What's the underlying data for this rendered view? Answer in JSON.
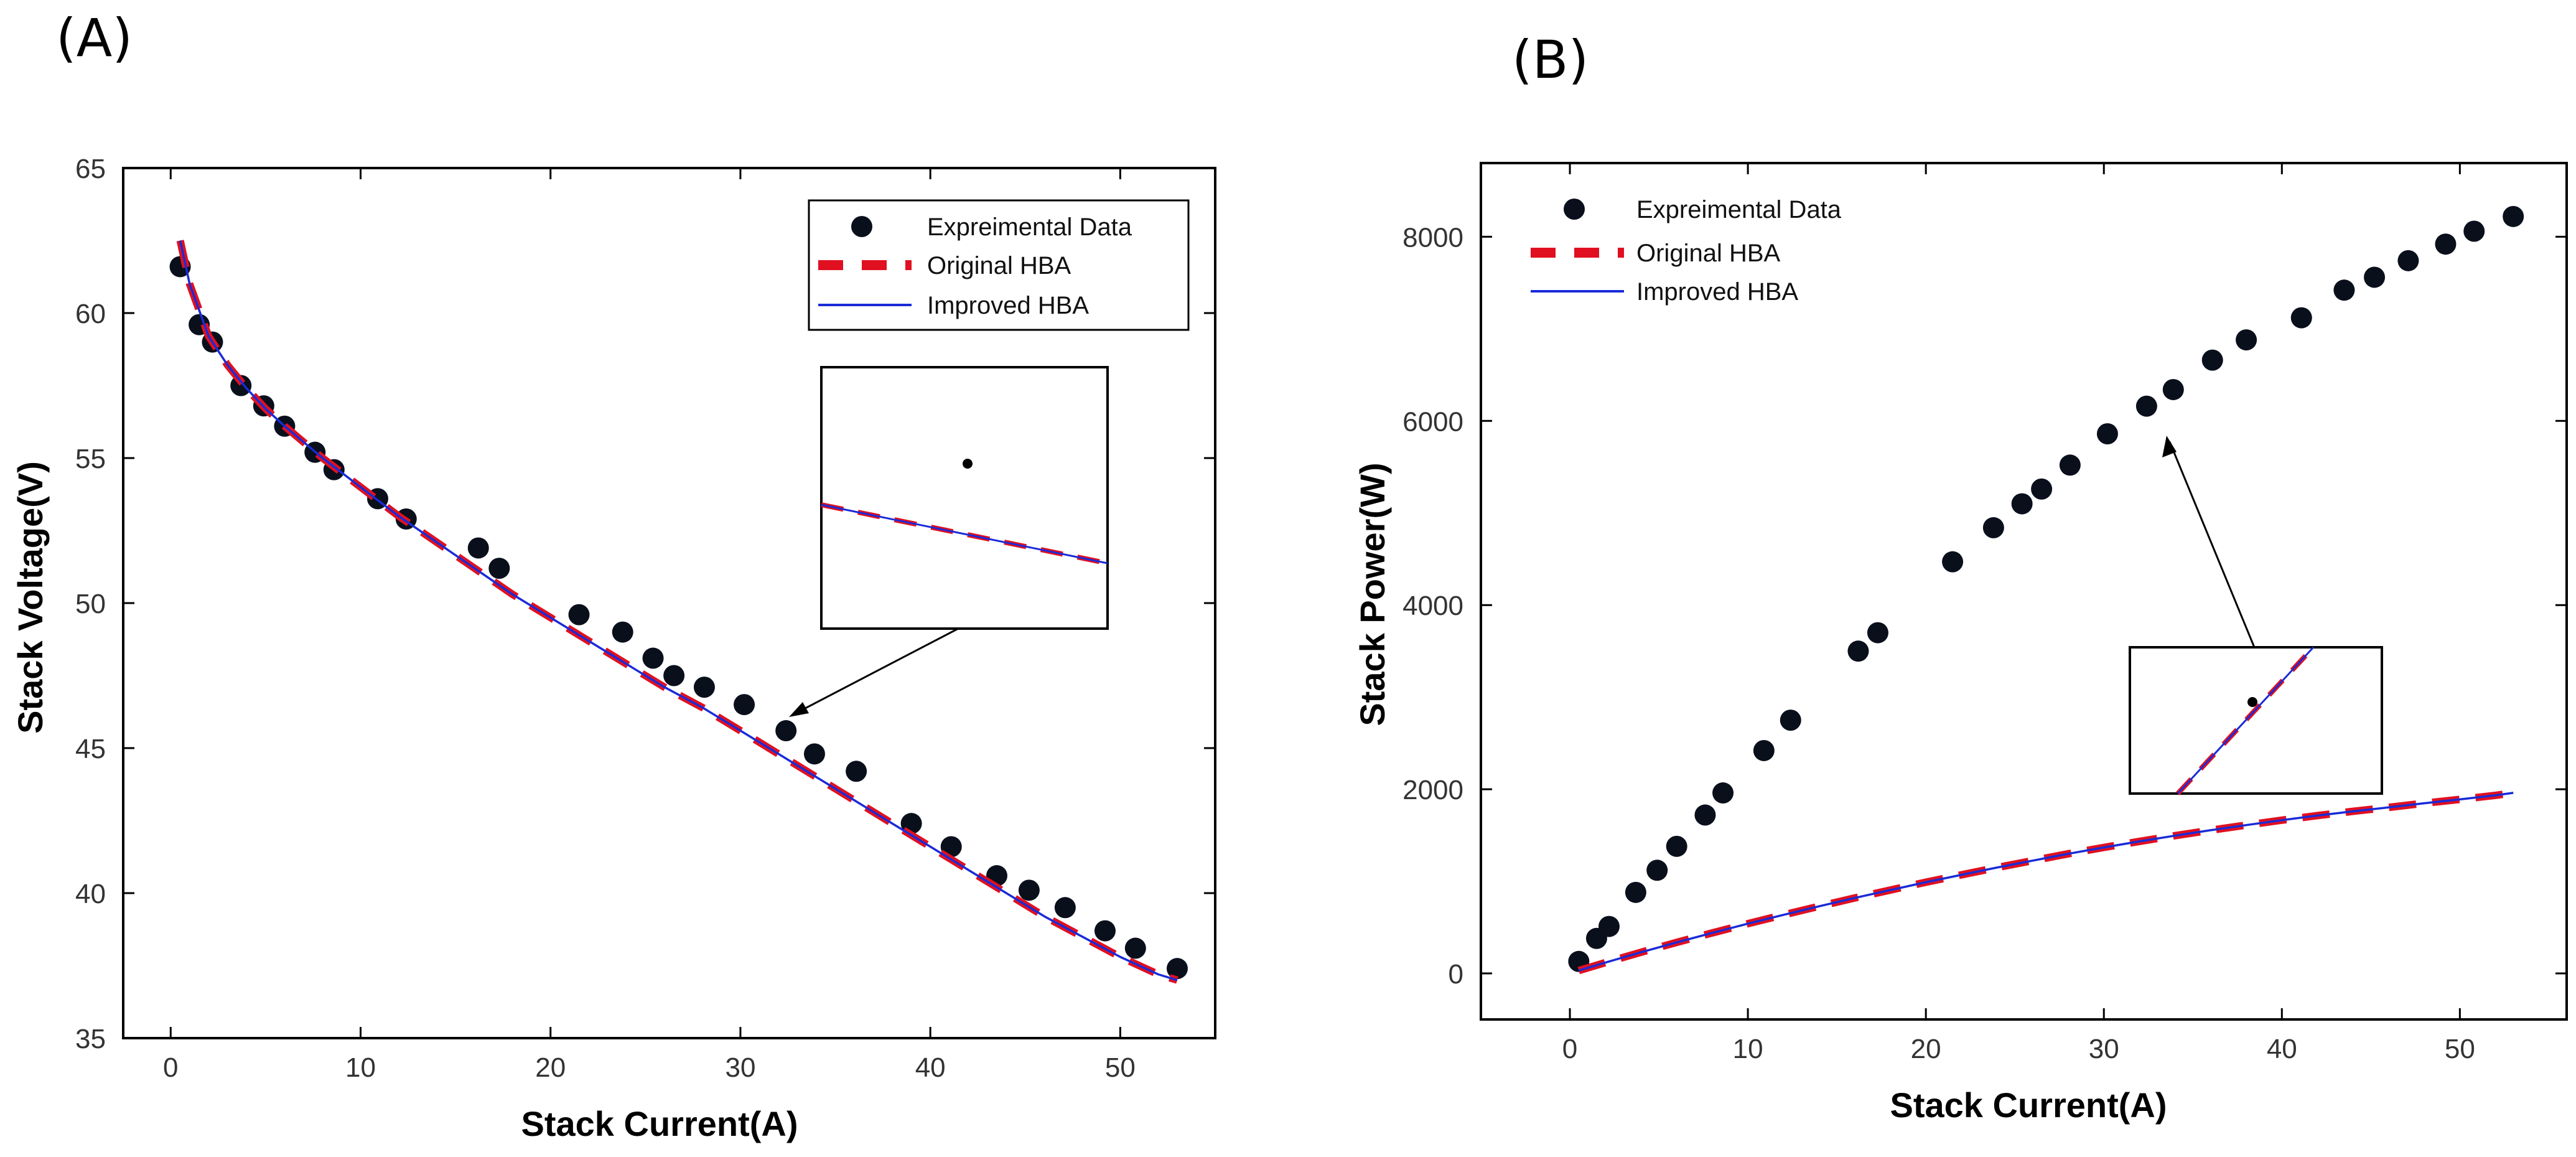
{
  "chart_data": [
    {
      "type": "scatter",
      "panel_label": "(A)",
      "xlabel": "Stack Current(A)",
      "ylabel": "Stack Voltage(V)",
      "xlim": [
        -2.5,
        55
      ],
      "ylim": [
        35,
        65
      ],
      "xticks": [
        0,
        10,
        20,
        30,
        40,
        50
      ],
      "yticks": [
        35,
        40,
        45,
        50,
        55,
        60,
        65
      ],
      "legend": [
        "Expreimental Data",
        "Original HBA",
        "Improved HBA"
      ],
      "legend_position": "top-right",
      "inset": "zoom",
      "series": [
        {
          "name": "Expreimental Data",
          "kind": "markers",
          "x": [
            0.5,
            1.5,
            2.2,
            3.7,
            4.9,
            6.0,
            7.6,
            8.6,
            10.9,
            12.4,
            16.2,
            17.3,
            21.5,
            23.8,
            25.4,
            26.5,
            28.1,
            30.2,
            32.4,
            33.9,
            36.1,
            39.0,
            41.1,
            43.5,
            45.2,
            47.1,
            49.2,
            50.8,
            53.0
          ],
          "y": [
            61.6,
            59.6,
            59.0,
            57.5,
            56.8,
            56.1,
            55.2,
            54.6,
            53.6,
            52.9,
            51.9,
            51.2,
            49.6,
            49.0,
            48.1,
            47.5,
            47.1,
            46.5,
            45.6,
            44.8,
            44.2,
            42.4,
            41.6,
            40.6,
            40.1,
            39.5,
            38.7,
            38.1,
            37.4
          ]
        },
        {
          "name": "Original HBA",
          "kind": "dashed-line",
          "x": [
            0.5,
            1.0,
            2.0,
            3.0,
            4.0,
            5.0,
            6.0,
            8.0,
            10.0,
            12.0,
            14.0,
            16.0,
            18.0,
            20.0,
            22.0,
            24.0,
            26.0,
            28.0,
            30.0,
            32.0,
            34.0,
            36.0,
            38.0,
            40.0,
            42.0,
            44.0,
            46.0,
            48.0,
            50.0,
            52.0,
            53.0
          ],
          "y": [
            62.5,
            61.0,
            59.2,
            58.2,
            57.4,
            56.7,
            56.1,
            55.0,
            54.0,
            53.0,
            52.1,
            51.2,
            50.3,
            49.5,
            48.7,
            47.9,
            47.1,
            46.4,
            45.6,
            44.8,
            44.0,
            43.2,
            42.4,
            41.6,
            40.8,
            40.0,
            39.2,
            38.5,
            37.8,
            37.2,
            37.0
          ]
        },
        {
          "name": "Improved HBA",
          "kind": "line",
          "x": [
            0.5,
            1.0,
            2.0,
            3.0,
            4.0,
            5.0,
            6.0,
            8.0,
            10.0,
            12.0,
            14.0,
            16.0,
            18.0,
            20.0,
            22.0,
            24.0,
            26.0,
            28.0,
            30.0,
            32.0,
            34.0,
            36.0,
            38.0,
            40.0,
            42.0,
            44.0,
            46.0,
            48.0,
            50.0,
            52.0,
            53.0
          ],
          "y": [
            62.5,
            61.0,
            59.2,
            58.2,
            57.4,
            56.7,
            56.1,
            55.0,
            54.0,
            53.0,
            52.1,
            51.2,
            50.3,
            49.5,
            48.7,
            47.9,
            47.1,
            46.4,
            45.6,
            44.8,
            44.0,
            43.2,
            42.4,
            41.6,
            40.8,
            40.0,
            39.2,
            38.5,
            37.8,
            37.2,
            37.0
          ]
        }
      ]
    },
    {
      "type": "scatter",
      "panel_label": "(B)",
      "xlabel": "Stack Current(A)",
      "ylabel": "Stack Power(W)",
      "xlim": [
        -5,
        56
      ],
      "ylim": [
        -500,
        8800
      ],
      "xticks": [
        0,
        10,
        20,
        30,
        40,
        50
      ],
      "yticks": [
        0,
        2000,
        4000,
        6000,
        8000
      ],
      "legend": [
        "Expreimental Data",
        "Original HBA",
        "Improved HBA"
      ],
      "legend_position": "top-left",
      "inset": "zoom",
      "series": [
        {
          "name": "Expreimental Data",
          "kind": "markers",
          "x": [
            0.5,
            1.5,
            2.2,
            3.7,
            4.9,
            6.0,
            7.6,
            8.6,
            10.9,
            12.4,
            16.2,
            17.3,
            21.5,
            23.8,
            25.4,
            26.5,
            28.1,
            30.2,
            32.4,
            33.9,
            36.1,
            38.0,
            41.1,
            43.5,
            45.2,
            47.1,
            49.2,
            50.8,
            53.0
          ],
          "y": [
            130,
            380,
            510,
            880,
            1120,
            1380,
            1720,
            1960,
            2420,
            2750,
            3500,
            3700,
            4470,
            4840,
            5100,
            5260,
            5520,
            5860,
            6160,
            6340,
            6660,
            6880,
            7120,
            7420,
            7560,
            7740,
            7920,
            8060,
            8220
          ]
        },
        {
          "name": "Original HBA",
          "kind": "dashed-line",
          "x": [
            0.5,
            2.0,
            4.0,
            6.0,
            8.0,
            10.0,
            12.0,
            14.0,
            16.0,
            18.0,
            20.0,
            22.0,
            24.0,
            26.0,
            28.0,
            30.0,
            32.0,
            34.0,
            36.0,
            38.0,
            40.0,
            42.0,
            44.0,
            46.0,
            48.0,
            50.0,
            52.0,
            53.0
          ],
          "y": [
            31,
            118,
            230,
            337,
            440,
            540,
            636,
            729,
            819,
            905,
            990,
            1071,
            1150,
            1225,
            1299,
            1368,
            1434,
            1496,
            1555,
            1611,
            1664,
            1714,
            1760,
            1803,
            1848,
            1890,
            1934,
            1961
          ]
        },
        {
          "name": "Improved HBA",
          "kind": "line",
          "x": [
            0.5,
            2.0,
            4.0,
            6.0,
            8.0,
            10.0,
            12.0,
            14.0,
            16.0,
            18.0,
            20.0,
            22.0,
            24.0,
            26.0,
            28.0,
            30.0,
            32.0,
            34.0,
            36.0,
            38.0,
            40.0,
            42.0,
            44.0,
            46.0,
            48.0,
            50.0,
            52.0,
            53.0
          ],
          "y": [
            31,
            118,
            230,
            337,
            440,
            540,
            636,
            729,
            819,
            905,
            990,
            1071,
            1150,
            1225,
            1299,
            1368,
            1434,
            1496,
            1555,
            1611,
            1664,
            1714,
            1760,
            1803,
            1848,
            1890,
            1934,
            1961
          ]
        }
      ]
    }
  ],
  "colors": {
    "marker": "#0a0f1c",
    "original": "#e01020",
    "improved": "#1a2bd8",
    "axis": "#000000"
  }
}
